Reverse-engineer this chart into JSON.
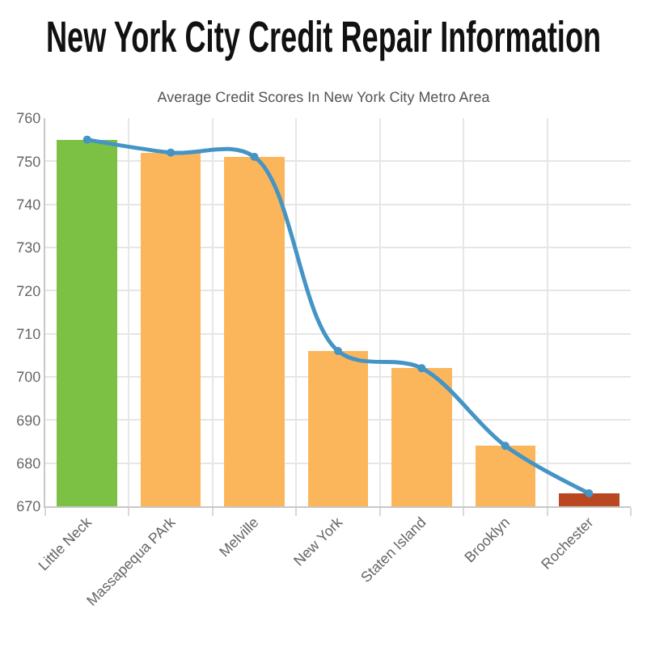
{
  "chart_data": {
    "type": "bar",
    "title": "New York City Credit Repair Information",
    "subtitle": "Average Credit Scores In New York City Metro Area",
    "categories": [
      "Little Neck",
      "Massapequa PArk",
      "Melville",
      "New York",
      "Staten Island",
      "Brooklyn",
      "Rochester"
    ],
    "series": [
      {
        "colors": [
          "#7cc143",
          "#fbb65c",
          "#fbb65c",
          "#fbb65c",
          "#fbb65c",
          "#fbb65c",
          "#b9471f"
        ],
        "values": [
          755,
          752,
          751,
          706,
          702,
          684,
          673
        ]
      },
      {
        "type": "line",
        "color": "#4494c6",
        "values": [
          755,
          752,
          751,
          706,
          702,
          684,
          673
        ]
      }
    ],
    "ylim": [
      670,
      760
    ],
    "yticks": [
      670,
      680,
      690,
      700,
      710,
      720,
      730,
      740,
      750,
      760
    ],
    "grid": true,
    "marker": "circle"
  }
}
